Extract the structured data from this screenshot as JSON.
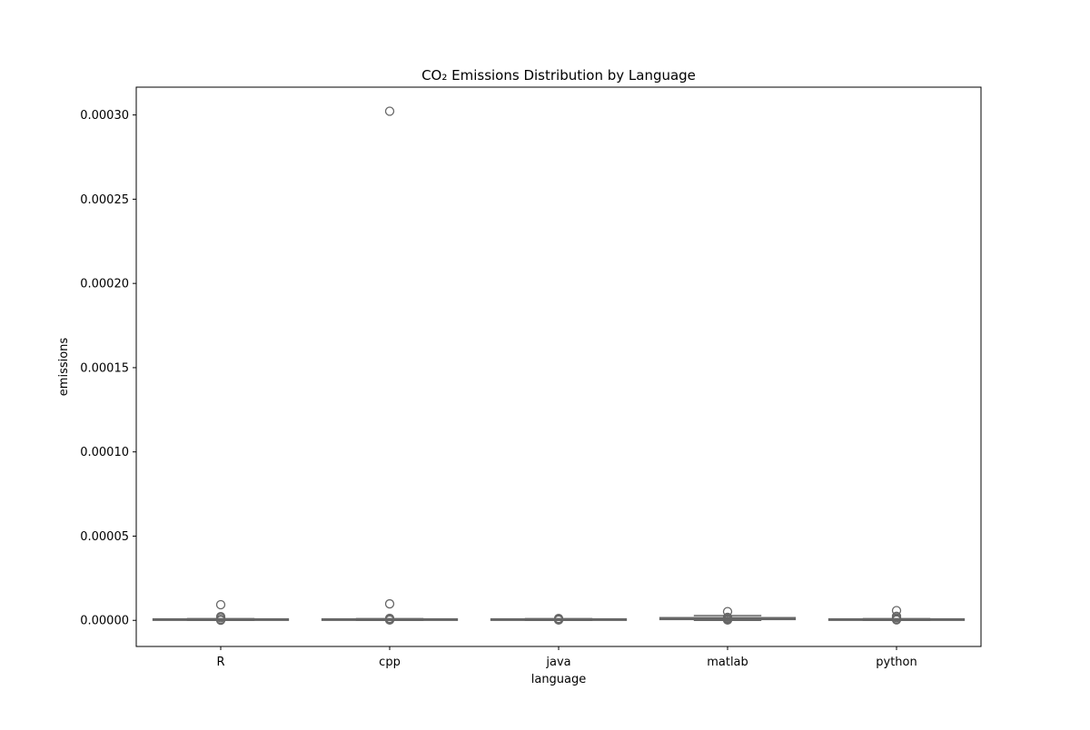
{
  "chart_data": {
    "type": "box",
    "title": "CO₂ Emissions Distribution by Language",
    "xlabel": "language",
    "ylabel": "emissions",
    "categories": [
      "R",
      "cpp",
      "java",
      "matlab",
      "python"
    ],
    "ylim": [
      -1.55e-05,
      0.0003165
    ],
    "yticks": [
      0.0,
      5e-05,
      0.0001,
      0.00015,
      0.0002,
      0.00025,
      0.0003
    ],
    "ytick_labels": [
      "0.00000",
      "0.00005",
      "0.00010",
      "0.00015",
      "0.00020",
      "0.00025",
      "0.00030"
    ],
    "grid": false,
    "box_color": "#ffffff",
    "line_color": "#666666",
    "boxes": [
      {
        "category": "R",
        "q1": 2e-07,
        "median": 4e-07,
        "q3": 7e-07,
        "whisker_low": 0.0,
        "whisker_high": 1e-06,
        "outliers": [
          9.3e-06,
          2.2e-06,
          1.5e-06,
          5e-07,
          1e-07
        ]
      },
      {
        "category": "cpp",
        "q1": 2e-07,
        "median": 4e-07,
        "q3": 7e-07,
        "whisker_low": 0.0,
        "whisker_high": 1e-06,
        "outliers": [
          0.0003022,
          9.8e-06,
          1.2e-06,
          6e-07,
          2e-07
        ]
      },
      {
        "category": "java",
        "q1": 2e-07,
        "median": 4e-07,
        "q3": 7e-07,
        "whisker_low": 0.0,
        "whisker_high": 1e-06,
        "outliers": [
          1.1e-06,
          6e-07,
          2e-07
        ]
      },
      {
        "category": "matlab",
        "q1": 5e-07,
        "median": 1e-06,
        "q3": 1.6e-06,
        "whisker_low": 0.0,
        "whisker_high": 2.8e-06,
        "outliers": [
          5.2e-06,
          1.8e-06,
          1.2e-06,
          6e-07,
          2e-07
        ]
      },
      {
        "category": "python",
        "q1": 2e-07,
        "median": 4e-07,
        "q3": 7e-07,
        "whisker_low": 0.0,
        "whisker_high": 1e-06,
        "outliers": [
          5.8e-06,
          2.4e-06,
          1.6e-06,
          8e-07,
          3e-07
        ]
      }
    ]
  }
}
